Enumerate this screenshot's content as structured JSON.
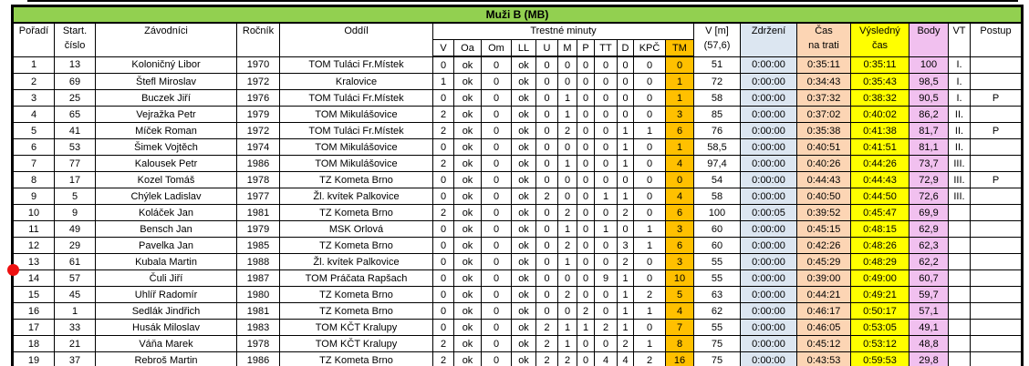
{
  "banner": {
    "title": "Muži B (MB)"
  },
  "header": {
    "rank": "Pořadí",
    "start_l1": "Start.",
    "start_l2": "číslo",
    "competitors": "Závodníci",
    "year": "Ročník",
    "club": "Oddíl",
    "penalties_group": "Trestné minuty",
    "penalty_cols": [
      "V",
      "Oa",
      "Om",
      "LL",
      "U",
      "M",
      "P",
      "TT",
      "D",
      "KPČ",
      "TM"
    ],
    "vm_l1": "V [m]",
    "vm_l2": "(57,6)",
    "delay": "Zdržení",
    "time_l1": "Čas",
    "time_l2": "na trati",
    "result_l1": "Výsledný",
    "result_l2": "čas",
    "points": "Body",
    "vt": "VT",
    "advance": "Postup"
  },
  "colors": {
    "banner_green": "#92d050",
    "tm_orange": "#ffc000",
    "delay_blue": "#dce6f1",
    "track_time_peach": "#fcd5b4",
    "result_yellow": "#ffff00",
    "points_pink": "#f1c0ef",
    "marker_red": "#ee1111"
  },
  "marker": {
    "description": "red-dot-at-row-14"
  },
  "column_keys": [
    "rank",
    "start-number",
    "competitor-name",
    "birth-year",
    "club",
    "pen-v",
    "pen-oa",
    "pen-om",
    "pen-ll",
    "pen-u",
    "pen-m",
    "pen-p",
    "pen-tt",
    "pen-d",
    "pen-kpc",
    "pen-tm",
    "v-m",
    "delay",
    "track-time",
    "result-time",
    "points",
    "vt",
    "advance"
  ],
  "rows": [
    [
      "1",
      "13",
      "Koloničný Libor",
      "1970",
      "TOM Tuláci Fr.Místek",
      "0",
      "ok",
      "0",
      "ok",
      "0",
      "0",
      "0",
      "0",
      "0",
      "0",
      "0",
      "51",
      "0:00:00",
      "0:35:11",
      "0:35:11",
      "100",
      "I.",
      ""
    ],
    [
      "2",
      "69",
      "Štefl Miroslav",
      "1972",
      "Kralovice",
      "1",
      "ok",
      "0",
      "ok",
      "0",
      "0",
      "0",
      "0",
      "0",
      "0",
      "1",
      "72",
      "0:00:00",
      "0:34:43",
      "0:35:43",
      "98,5",
      "I.",
      ""
    ],
    [
      "3",
      "25",
      "Buczek Jiří",
      "1976",
      "TOM Tuláci Fr.Místek",
      "0",
      "ok",
      "0",
      "ok",
      "0",
      "1",
      "0",
      "0",
      "0",
      "0",
      "1",
      "58",
      "0:00:00",
      "0:37:32",
      "0:38:32",
      "90,5",
      "I.",
      "P"
    ],
    [
      "4",
      "65",
      "Vejražka Petr",
      "1979",
      "TOM Mikulášovice",
      "2",
      "ok",
      "0",
      "ok",
      "0",
      "1",
      "0",
      "0",
      "0",
      "0",
      "3",
      "85",
      "0:00:00",
      "0:37:02",
      "0:40:02",
      "86,2",
      "II.",
      ""
    ],
    [
      "5",
      "41",
      "Míček Roman",
      "1972",
      "TOM Tuláci Fr.Místek",
      "2",
      "ok",
      "0",
      "ok",
      "0",
      "2",
      "0",
      "0",
      "1",
      "1",
      "6",
      "76",
      "0:00:00",
      "0:35:38",
      "0:41:38",
      "81,7",
      "II.",
      "P"
    ],
    [
      "6",
      "53",
      "Šimek Vojtěch",
      "1974",
      "TOM Mikulášovice",
      "0",
      "ok",
      "0",
      "ok",
      "0",
      "0",
      "0",
      "0",
      "1",
      "0",
      "1",
      "58,5",
      "0:00:00",
      "0:40:51",
      "0:41:51",
      "81,1",
      "II.",
      ""
    ],
    [
      "7",
      "77",
      "Kalousek Petr",
      "1986",
      "TOM Mikulášovice",
      "2",
      "ok",
      "0",
      "ok",
      "0",
      "1",
      "0",
      "0",
      "1",
      "0",
      "4",
      "97,4",
      "0:00:00",
      "0:40:26",
      "0:44:26",
      "73,7",
      "III.",
      ""
    ],
    [
      "8",
      "17",
      "Kozel Tomáš",
      "1978",
      "TZ Kometa Brno",
      "0",
      "ok",
      "0",
      "ok",
      "0",
      "0",
      "0",
      "0",
      "0",
      "0",
      "0",
      "54",
      "0:00:00",
      "0:44:43",
      "0:44:43",
      "72,9",
      "III.",
      "P"
    ],
    [
      "9",
      "5",
      "Chýlek Ladislav",
      "1977",
      "Žl. kvítek Palkovice",
      "0",
      "ok",
      "0",
      "ok",
      "2",
      "0",
      "0",
      "1",
      "1",
      "0",
      "4",
      "58",
      "0:00:00",
      "0:40:50",
      "0:44:50",
      "72,6",
      "III.",
      ""
    ],
    [
      "10",
      "9",
      "Koláček Jan",
      "1981",
      "TZ Kometa Brno",
      "2",
      "ok",
      "0",
      "ok",
      "0",
      "2",
      "0",
      "0",
      "2",
      "0",
      "6",
      "100",
      "0:00:05",
      "0:39:52",
      "0:45:47",
      "69,9",
      "",
      ""
    ],
    [
      "11",
      "49",
      "Bensch Jan",
      "1979",
      "MSK Orlová",
      "0",
      "ok",
      "0",
      "ok",
      "0",
      "1",
      "0",
      "1",
      "0",
      "1",
      "3",
      "60",
      "0:00:00",
      "0:45:15",
      "0:48:15",
      "62,9",
      "",
      ""
    ],
    [
      "12",
      "29",
      "Pavelka Jan",
      "1985",
      "TZ Kometa Brno",
      "0",
      "ok",
      "0",
      "ok",
      "0",
      "2",
      "0",
      "0",
      "3",
      "1",
      "6",
      "60",
      "0:00:00",
      "0:42:26",
      "0:48:26",
      "62,3",
      "",
      ""
    ],
    [
      "13",
      "61",
      "Kubala Martin",
      "1988",
      "Žl. kvítek Palkovice",
      "0",
      "ok",
      "0",
      "ok",
      "0",
      "1",
      "0",
      "0",
      "2",
      "0",
      "3",
      "55",
      "0:00:00",
      "0:45:29",
      "0:48:29",
      "62,2",
      "",
      ""
    ],
    [
      "14",
      "57",
      "Čuli Jiří",
      "1987",
      "TOM Práčata Rapšach",
      "0",
      "ok",
      "0",
      "ok",
      "0",
      "0",
      "0",
      "9",
      "1",
      "0",
      "10",
      "55",
      "0:00:00",
      "0:39:00",
      "0:49:00",
      "60,7",
      "",
      ""
    ],
    [
      "15",
      "45",
      "Uhlíř Radomír",
      "1980",
      "TZ Kometa Brno",
      "0",
      "ok",
      "0",
      "ok",
      "0",
      "2",
      "0",
      "0",
      "1",
      "2",
      "5",
      "63",
      "0:00:00",
      "0:44:21",
      "0:49:21",
      "59,7",
      "",
      ""
    ],
    [
      "16",
      "1",
      "Sedlák Jindřich",
      "1981",
      "TZ Kometa Brno",
      "0",
      "ok",
      "0",
      "ok",
      "0",
      "0",
      "2",
      "0",
      "1",
      "1",
      "4",
      "62",
      "0:00:00",
      "0:46:17",
      "0:50:17",
      "57,1",
      "",
      ""
    ],
    [
      "17",
      "33",
      "Husák Miloslav",
      "1983",
      "TOM KČT Kralupy",
      "0",
      "ok",
      "0",
      "ok",
      "2",
      "1",
      "1",
      "2",
      "1",
      "0",
      "7",
      "55",
      "0:00:00",
      "0:46:05",
      "0:53:05",
      "49,1",
      "",
      ""
    ],
    [
      "18",
      "21",
      "Váňa Marek",
      "1978",
      "TOM KČT Kralupy",
      "2",
      "ok",
      "0",
      "ok",
      "2",
      "1",
      "0",
      "0",
      "2",
      "1",
      "8",
      "75",
      "0:00:00",
      "0:45:12",
      "0:53:12",
      "48,8",
      "",
      ""
    ],
    [
      "19",
      "37",
      "Rebroš Martin",
      "1986",
      "TZ Kometa Brno",
      "2",
      "ok",
      "0",
      "ok",
      "2",
      "2",
      "0",
      "4",
      "4",
      "2",
      "16",
      "75",
      "0:00:00",
      "0:43:53",
      "0:59:53",
      "29,8",
      "",
      ""
    ]
  ]
}
